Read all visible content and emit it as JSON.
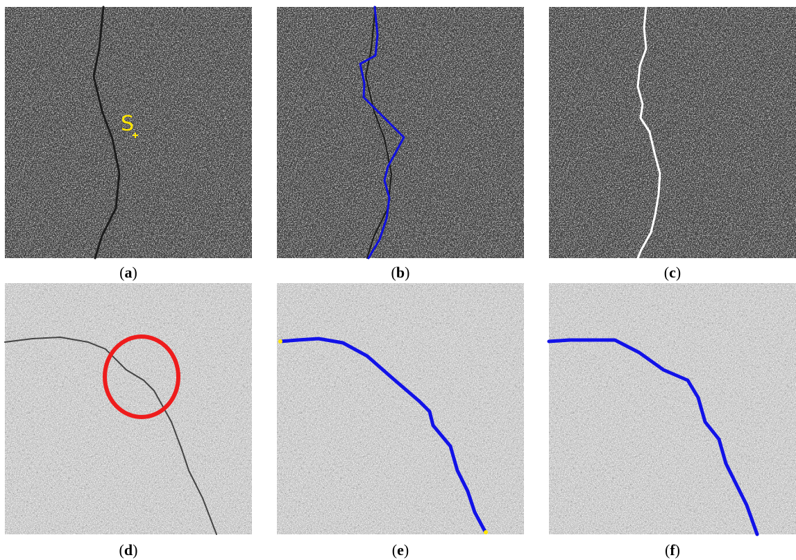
{
  "panels": [
    {
      "label_prefix": "(",
      "letter": "a",
      "label_suffix": ")",
      "annotation": "S"
    },
    {
      "label_prefix": "(",
      "letter": "b",
      "label_suffix": ")"
    },
    {
      "label_prefix": "(",
      "letter": "c",
      "label_suffix": ")"
    },
    {
      "label_prefix": "(",
      "letter": "d",
      "label_suffix": ")"
    },
    {
      "label_prefix": "(",
      "letter": "e",
      "label_suffix": ")"
    },
    {
      "label_prefix": "(",
      "letter": "f",
      "label_suffix": ")"
    }
  ]
}
